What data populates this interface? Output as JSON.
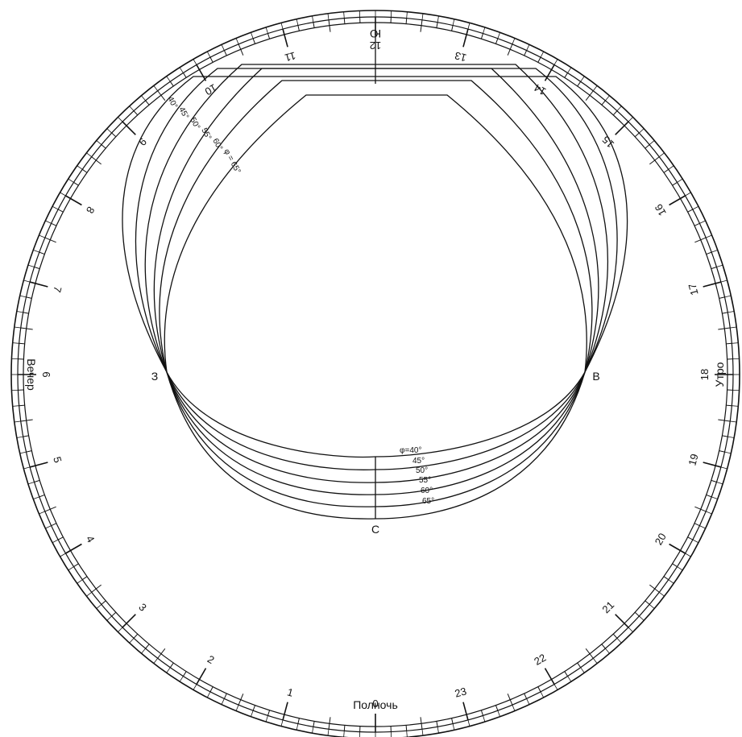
{
  "hours": [
    "0",
    "1",
    "2",
    "3",
    "4",
    "5",
    "6",
    "7",
    "8",
    "9",
    "10",
    "11",
    "12",
    "13",
    "14",
    "15",
    "16",
    "17",
    "18",
    "19",
    "20",
    "21",
    "22",
    "23"
  ],
  "labels": {
    "midnight": "Полночь",
    "morning": "Утро",
    "evening": "Вечер"
  },
  "directions": {
    "south": "Ю",
    "north": "С",
    "east": "В",
    "west": "З"
  },
  "latitudes": [
    "40°",
    "45°",
    "50°",
    "55°",
    "60°",
    "65°"
  ],
  "latitude_prefix": "φ = ",
  "lower_latitude_prefix": "φ="
}
